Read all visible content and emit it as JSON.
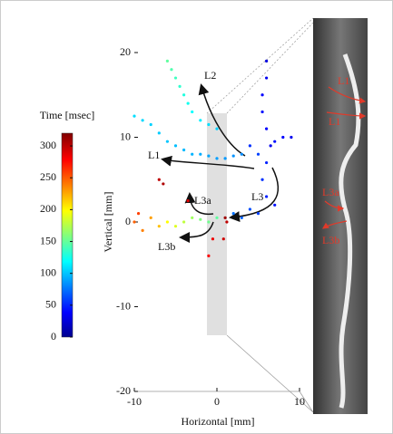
{
  "chart_data": {
    "type": "scatter",
    "xlabel": "Horizontal [mm]",
    "ylabel": "Vertical [mm]",
    "xlim": [
      -10,
      10
    ],
    "ylim": [
      -20,
      20
    ],
    "xticks": [
      -10,
      0,
      10
    ],
    "yticks": [
      -20,
      -10,
      0,
      10,
      20
    ],
    "colorbar": {
      "label": "Time [msec]",
      "lim": [
        0,
        320
      ],
      "ticks": [
        0,
        50,
        100,
        150,
        200,
        250,
        300
      ]
    },
    "annotations": [
      "L2",
      "L1",
      "L3",
      "L3a",
      "L3b"
    ],
    "image_labels": [
      "L1",
      "L1",
      "L3a",
      "L3b"
    ],
    "x": [
      -6,
      -5.5,
      -5,
      -4.5,
      -4,
      -3.5,
      -3,
      -2,
      -1,
      0,
      -10,
      -9,
      -8,
      -7,
      -6,
      -5,
      -4,
      -3,
      -2,
      -1,
      0,
      1,
      2,
      3,
      6,
      6,
      5.5,
      5.5,
      6,
      6.5,
      6,
      7,
      8,
      9,
      4,
      5,
      5.5,
      6,
      7,
      5,
      4,
      3,
      2,
      -10,
      -9,
      -9.5,
      -8,
      -7,
      -6,
      -5,
      -4,
      -3,
      -2,
      -1,
      0,
      -7,
      -6.5,
      -3.5,
      1,
      1.2,
      0.8,
      -0.5,
      -1
    ],
    "values": [
      19,
      18,
      17,
      16,
      15,
      14,
      13,
      12,
      11.5,
      11,
      12.5,
      12,
      11.5,
      10.5,
      9.5,
      9,
      8.5,
      8,
      8,
      7.8,
      7.5,
      7.5,
      7.8,
      8,
      19,
      17,
      15,
      13,
      11,
      9,
      7,
      9.5,
      10,
      10,
      9,
      8,
      5,
      3,
      2,
      1,
      1.5,
      0.5,
      1,
      0,
      -1,
      1,
      0.5,
      -0.5,
      0,
      -0.5,
      0,
      0.5,
      0.3,
      0,
      0.5,
      5,
      4.5,
      2.5,
      0.5,
      0,
      -2,
      -2,
      -4
    ],
    "time": [
      150,
      145,
      140,
      135,
      130,
      125,
      120,
      115,
      110,
      105,
      110,
      108,
      106,
      104,
      102,
      100,
      98,
      96,
      94,
      92,
      90,
      88,
      86,
      84,
      30,
      35,
      40,
      45,
      40,
      35,
      50,
      45,
      40,
      35,
      55,
      60,
      55,
      50,
      45,
      60,
      65,
      70,
      75,
      250,
      240,
      260,
      230,
      220,
      200,
      190,
      180,
      170,
      160,
      155,
      150,
      300,
      305,
      290,
      310,
      300,
      295,
      285,
      280
    ]
  }
}
